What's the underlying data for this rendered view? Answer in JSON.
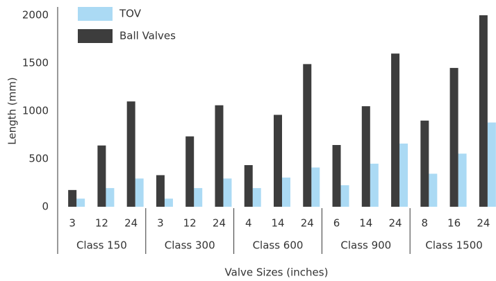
{
  "chart_data": {
    "type": "bar",
    "xlabel": "Valve Sizes (inches)",
    "ylabel": "Length (mm)",
    "groups": [
      {
        "name": "Class 150",
        "categories": [
          "3",
          "12",
          "24"
        ]
      },
      {
        "name": "Class 300",
        "categories": [
          "3",
          "12",
          "24"
        ]
      },
      {
        "name": "Class 600",
        "categories": [
          "4",
          "14",
          "24"
        ]
      },
      {
        "name": "Class 900",
        "categories": [
          "6",
          "14",
          "24"
        ]
      },
      {
        "name": "Class 1500",
        "categories": [
          "8",
          "16",
          "24"
        ]
      }
    ],
    "series": [
      {
        "name": "TOV",
        "color": "#abdaf4",
        "values": [
          85,
          195,
          295,
          85,
          195,
          295,
          195,
          305,
          410,
          225,
          450,
          660,
          345,
          555,
          880
        ]
      },
      {
        "name": "Ball Valves",
        "color": "#3d3d3d",
        "values": [
          175,
          640,
          1100,
          330,
          735,
          1060,
          435,
          960,
          1490,
          645,
          1050,
          1600,
          900,
          1450,
          2000
        ]
      }
    ],
    "ylim": [
      0,
      2000
    ],
    "yticks": [
      0,
      500,
      1000,
      1500,
      2000
    ],
    "legend": "upper left"
  }
}
